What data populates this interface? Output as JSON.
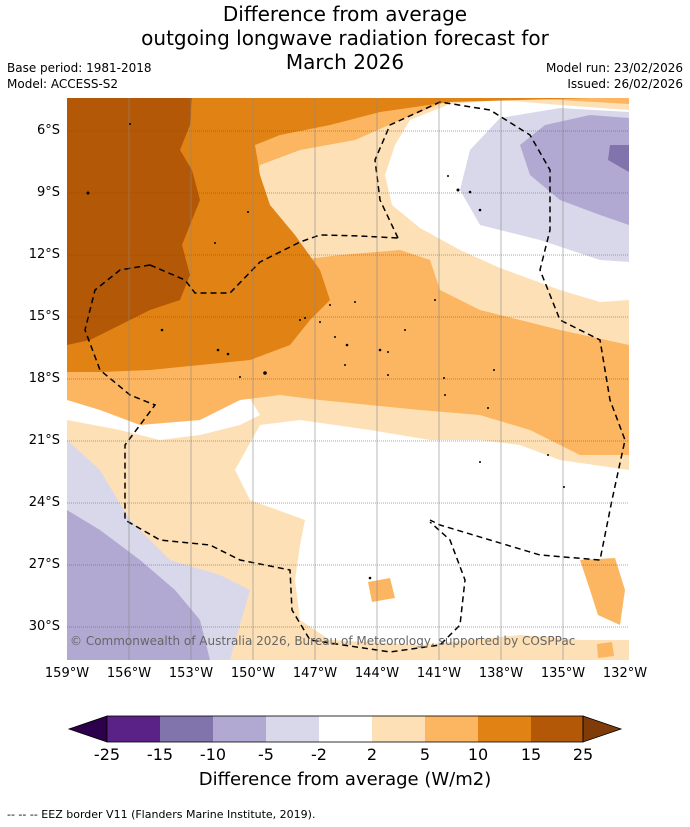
{
  "title_lines": [
    "Difference from average",
    "outgoing longwave radiation forecast for",
    "March 2026"
  ],
  "meta_left": [
    "Base period: 1981-2018",
    "Model: ACCESS-S2"
  ],
  "meta_right": [
    "Model run: 23/02/2026",
    "Issued: 26/02/2026"
  ],
  "lat_labels": [
    "6°S",
    "9°S",
    "12°S",
    "15°S",
    "18°S",
    "21°S",
    "24°S",
    "27°S",
    "30°S"
  ],
  "lon_labels": [
    "159°W",
    "156°W",
    "153°W",
    "150°W",
    "147°W",
    "144°W",
    "141°W",
    "138°W",
    "135°W",
    "132°W"
  ],
  "credit": "© Commonwealth of Australia 2026, Bureau of Meteorology, supported by COSPPac",
  "colorbar": {
    "labels": [
      "-25",
      "-15",
      "-10",
      "-5",
      "-2",
      "2",
      "5",
      "10",
      "15",
      "25"
    ],
    "colors": [
      "#5a2287",
      "#8173ac",
      "#b1a9d1",
      "#d9d8ea",
      "#ffffff",
      "#fee0b6",
      "#fcb560",
      "#e08214",
      "#b35806"
    ],
    "low_color": "#2d004b",
    "high_color": "#7f3b08",
    "title": "Difference from average (W/m2)"
  },
  "footer": "-- -- -- EEZ border V11 (Flanders Marine Institute, 2019)."
}
